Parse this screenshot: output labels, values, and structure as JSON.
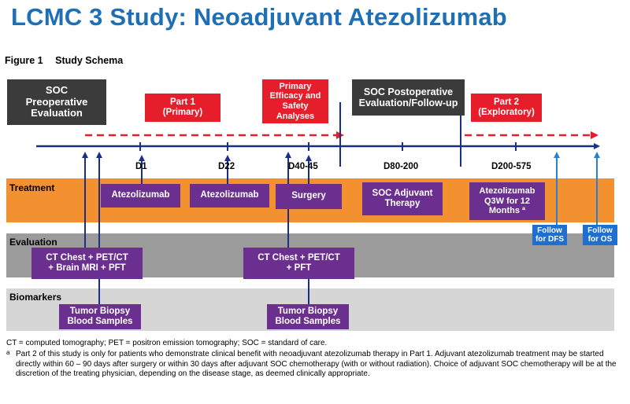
{
  "title": "LCMC 3 Study: Neoadjuvant Atezolizumab",
  "figure": {
    "number": "Figure 1",
    "caption": "Study Schema"
  },
  "phases": {
    "soc_preop": "SOC\nPreoperative\nEvaluation",
    "part1": "Part 1\n(Primary)",
    "primary_analyses": "Primary\nEfficacy and\nSafety\nAnalyses",
    "soc_postop": "SOC Postoperative\nEvaluation/Follow-up",
    "part2": "Part 2\n(Exploratory)"
  },
  "timepoints": [
    "D1",
    "D22",
    "D40-45",
    "D80-200",
    "D200-575"
  ],
  "bands": {
    "treatment": "Treatment",
    "evaluation": "Evaluation",
    "biomarkers": "Biomarkers"
  },
  "treatment": {
    "atezo1": "Atezolizumab",
    "atezo2": "Atezolizumab",
    "surgery": "Surgery",
    "soc_adjuvant": "SOC Adjuvant\nTherapy",
    "atezo_q3w": "Atezolizumab\nQ3W for 12\nMonths ª"
  },
  "follow": {
    "dfs": "Follow\nfor DFS",
    "os": "Follow\nfor OS"
  },
  "evaluation": {
    "baseline": "CT Chest + PET/CT\n+ Brain MRI + PFT",
    "presurgery": "CT Chest + PET/CT\n+ PFT"
  },
  "biomarkers": {
    "baseline": "Tumor Biopsy\nBlood Samples",
    "surgery": "Tumor Biopsy\nBlood Samples"
  },
  "footnotes": {
    "abbrev": "CT = computed tomography; PET = positron emission tomography; SOC = standard of care.",
    "marker": "a",
    "note_a": "Part 2 of this study is only for patients who demonstrate clinical benefit with neoadjuvant atezolizumab therapy in Part 1.  Adjuvant atezolizumab treatment may be started directly within 60 – 90 days after surgery or within 30 days after adjuvant SOC chemotherapy (with or without radiation). Choice of adjuvant SOC chemotherapy will be at the discretion of the treating physician, depending on the disease stage, as deemed clinically appropriate."
  },
  "colors": {
    "title": "#1f6fb5",
    "timeline": "#1a2f8a",
    "dashed_arrow": "#e61e2b",
    "treatment_band": "#f39131",
    "evaluation_band": "#9b9b9b",
    "biomarker_band": "#d6d6d6",
    "purple_box": "#6b2f8f",
    "red_box": "#e61e2b",
    "dark_box": "#3b3b3b",
    "follow_box": "#1f6fd0"
  }
}
